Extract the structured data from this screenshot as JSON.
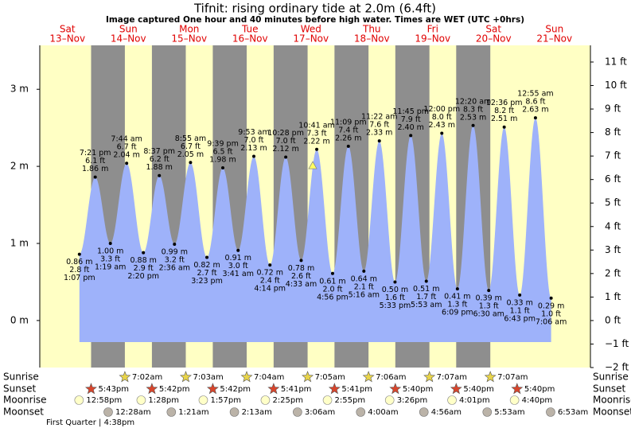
{
  "chart_data": {
    "type": "tide",
    "title": "Tifnit: rising  ordinary tide at 2.0m (6.4ft)",
    "subtitle": "Image captured One hour and 40 minutes before high water. Times are WET (UTC +0hrs)",
    "ylim": [
      -0.61,
      3.57
    ],
    "yticks": [
      {
        "value": 0,
        "label": "0 m"
      },
      {
        "value": 1,
        "label": "1 m"
      },
      {
        "value": 2,
        "label": "2 m"
      },
      {
        "value": 3,
        "label": "3 m"
      }
    ],
    "y2lim": [
      -2.0,
      11.71
    ],
    "y2ticks": [
      {
        "value": -2,
        "label": "−2 ft"
      },
      {
        "value": -1,
        "label": "−1 ft"
      },
      {
        "value": 0,
        "label": "0 ft"
      },
      {
        "value": 1,
        "label": "1 ft"
      },
      {
        "value": 2,
        "label": "2 ft"
      },
      {
        "value": 3,
        "label": "3 ft"
      },
      {
        "value": 4,
        "label": "4 ft"
      },
      {
        "value": 5,
        "label": "5 ft"
      },
      {
        "value": 6,
        "label": "6 ft"
      },
      {
        "value": 7,
        "label": "7 ft"
      },
      {
        "value": 8,
        "label": "8 ft"
      },
      {
        "value": 9,
        "label": "9 ft"
      },
      {
        "value": 10,
        "label": "10 ft"
      },
      {
        "value": 11,
        "label": "11 ft"
      }
    ],
    "rows": {
      "sunrise": "Sunrise",
      "sunset": "Sunset",
      "moonrise": "Moonrise",
      "moonset": "Moonset"
    },
    "days": [
      {
        "weekday": "Sat",
        "date": "13–Nov",
        "sunset": "5:43pm",
        "moonrise": "12:58pm",
        "moon_phase": "First Quarter | 4:38pm",
        "tides": [
          {
            "time": "1:07 pm",
            "value": 0.86,
            "value_label": "0.86 m",
            "feet_label": "2.8 ft"
          },
          {
            "time": "7:21 pm",
            "value": 1.86,
            "value_label": "1.86 m",
            "feet_label": "6.1 ft"
          }
        ]
      },
      {
        "weekday": "Sun",
        "date": "14–Nov",
        "sunrise": "7:02am",
        "sunset": "5:42pm",
        "moonrise": "1:28pm",
        "moonset": "12:28am",
        "tides": [
          {
            "time": "1:19 am",
            "value": 1.0,
            "value_label": "1.00 m",
            "feet_label": "3.3 ft"
          },
          {
            "time": "7:44 am",
            "value": 2.04,
            "value_label": "2.04 m",
            "feet_label": "6.7 ft"
          },
          {
            "time": "2:20 pm",
            "value": 0.88,
            "value_label": "0.88 m",
            "feet_label": "2.9 ft"
          },
          {
            "time": "8:37 pm",
            "value": 1.88,
            "value_label": "1.88 m",
            "feet_label": "6.2 ft"
          }
        ]
      },
      {
        "weekday": "Mon",
        "date": "15–Nov",
        "sunrise": "7:03am",
        "sunset": "5:42pm",
        "moonrise": "1:57pm",
        "moonset": "1:21am",
        "tides": [
          {
            "time": "2:36 am",
            "value": 0.99,
            "value_label": "0.99 m",
            "feet_label": "3.2 ft"
          },
          {
            "time": "8:55 am",
            "value": 2.05,
            "value_label": "2.05 m",
            "feet_label": "6.7 ft"
          },
          {
            "time": "3:23 pm",
            "value": 0.82,
            "value_label": "0.82 m",
            "feet_label": "2.7 ft"
          },
          {
            "time": "9:39 pm",
            "value": 1.98,
            "value_label": "1.98 m",
            "feet_label": "6.5 ft"
          }
        ]
      },
      {
        "weekday": "Tue",
        "date": "16–Nov",
        "sunrise": "7:04am",
        "sunset": "5:41pm",
        "moonrise": "2:25pm",
        "moonset": "2:13am",
        "tides": [
          {
            "time": "3:41 am",
            "value": 0.91,
            "value_label": "0.91 m",
            "feet_label": "3.0 ft"
          },
          {
            "time": "9:53 am",
            "value": 2.13,
            "value_label": "2.13 m",
            "feet_label": "7.0 ft"
          },
          {
            "time": "4:14 pm",
            "value": 0.72,
            "value_label": "0.72 m",
            "feet_label": "2.4 ft"
          },
          {
            "time": "10:28 pm",
            "value": 2.12,
            "value_label": "2.12 m",
            "feet_label": "7.0 ft"
          }
        ]
      },
      {
        "weekday": "Wed",
        "date": "17–Nov",
        "sunrise": "7:05am",
        "sunset": "5:41pm",
        "moonrise": "2:55pm",
        "moonset": "3:06am",
        "now": 2.0,
        "tides": [
          {
            "time": "4:33 am",
            "value": 0.78,
            "value_label": "0.78 m",
            "feet_label": "2.6 ft"
          },
          {
            "time": "10:41 am",
            "value": 2.22,
            "value_label": "2.22 m",
            "feet_label": "7.3 ft"
          },
          {
            "time": "4:56 pm",
            "value": 0.61,
            "value_label": "0.61 m",
            "feet_label": "2.0 ft"
          },
          {
            "time": "11:09 pm",
            "value": 2.26,
            "value_label": "2.26 m",
            "feet_label": "7.4 ft"
          }
        ]
      },
      {
        "weekday": "Thu",
        "date": "18–Nov",
        "sunrise": "7:06am",
        "sunset": "5:40pm",
        "moonrise": "3:26pm",
        "moonset": "4:00am",
        "tides": [
          {
            "time": "5:16 am",
            "value": 0.64,
            "value_label": "0.64 m",
            "feet_label": "2.1 ft"
          },
          {
            "time": "11:22 am",
            "value": 2.33,
            "value_label": "2.33 m",
            "feet_label": "7.6 ft"
          },
          {
            "time": "5:33 pm",
            "value": 0.5,
            "value_label": "0.50 m",
            "feet_label": "1.6 ft"
          },
          {
            "time": "11:45 pm",
            "value": 2.4,
            "value_label": "2.40 m",
            "feet_label": "7.9 ft"
          }
        ]
      },
      {
        "weekday": "Fri",
        "date": "19–Nov",
        "sunrise": "7:07am",
        "sunset": "5:40pm",
        "moonrise": "4:01pm",
        "moonset": "4:56am",
        "tides": [
          {
            "time": "5:53 am",
            "value": 0.51,
            "value_label": "0.51 m",
            "feet_label": "1.7 ft"
          },
          {
            "time": "12:00 pm",
            "value": 2.43,
            "value_label": "2.43 m",
            "feet_label": "8.0 ft"
          },
          {
            "time": "6:09 pm",
            "value": 0.41,
            "value_label": "0.41 m",
            "feet_label": "1.3 ft"
          }
        ]
      },
      {
        "weekday": "Sat",
        "date": "20–Nov",
        "sunrise": "7:07am",
        "sunset": "5:40pm",
        "moonrise": "4:40pm",
        "moonset": "5:53am",
        "tides": [
          {
            "time": "12:20 am",
            "value": 2.53,
            "value_label": "2.53 m",
            "feet_label": "8.3 ft"
          },
          {
            "time": "6:30 am",
            "value": 0.39,
            "value_label": "0.39 m",
            "feet_label": "1.3 ft"
          },
          {
            "time": "12:36 pm",
            "value": 2.51,
            "value_label": "2.51 m",
            "feet_label": "8.2 ft"
          },
          {
            "time": "6:43 pm",
            "value": 0.33,
            "value_label": "0.33 m",
            "feet_label": "1.1 ft"
          }
        ]
      },
      {
        "weekday": "Sun",
        "date": "21–Nov",
        "moonset": "6:53am",
        "tides": [
          {
            "time": "12:55 am",
            "value": 2.63,
            "value_label": "2.63 m",
            "feet_label": "8.6 ft"
          },
          {
            "time": "7:06 am",
            "value": 0.29,
            "value_label": "0.29 m",
            "feet_label": "1.0 ft"
          }
        ]
      }
    ]
  }
}
